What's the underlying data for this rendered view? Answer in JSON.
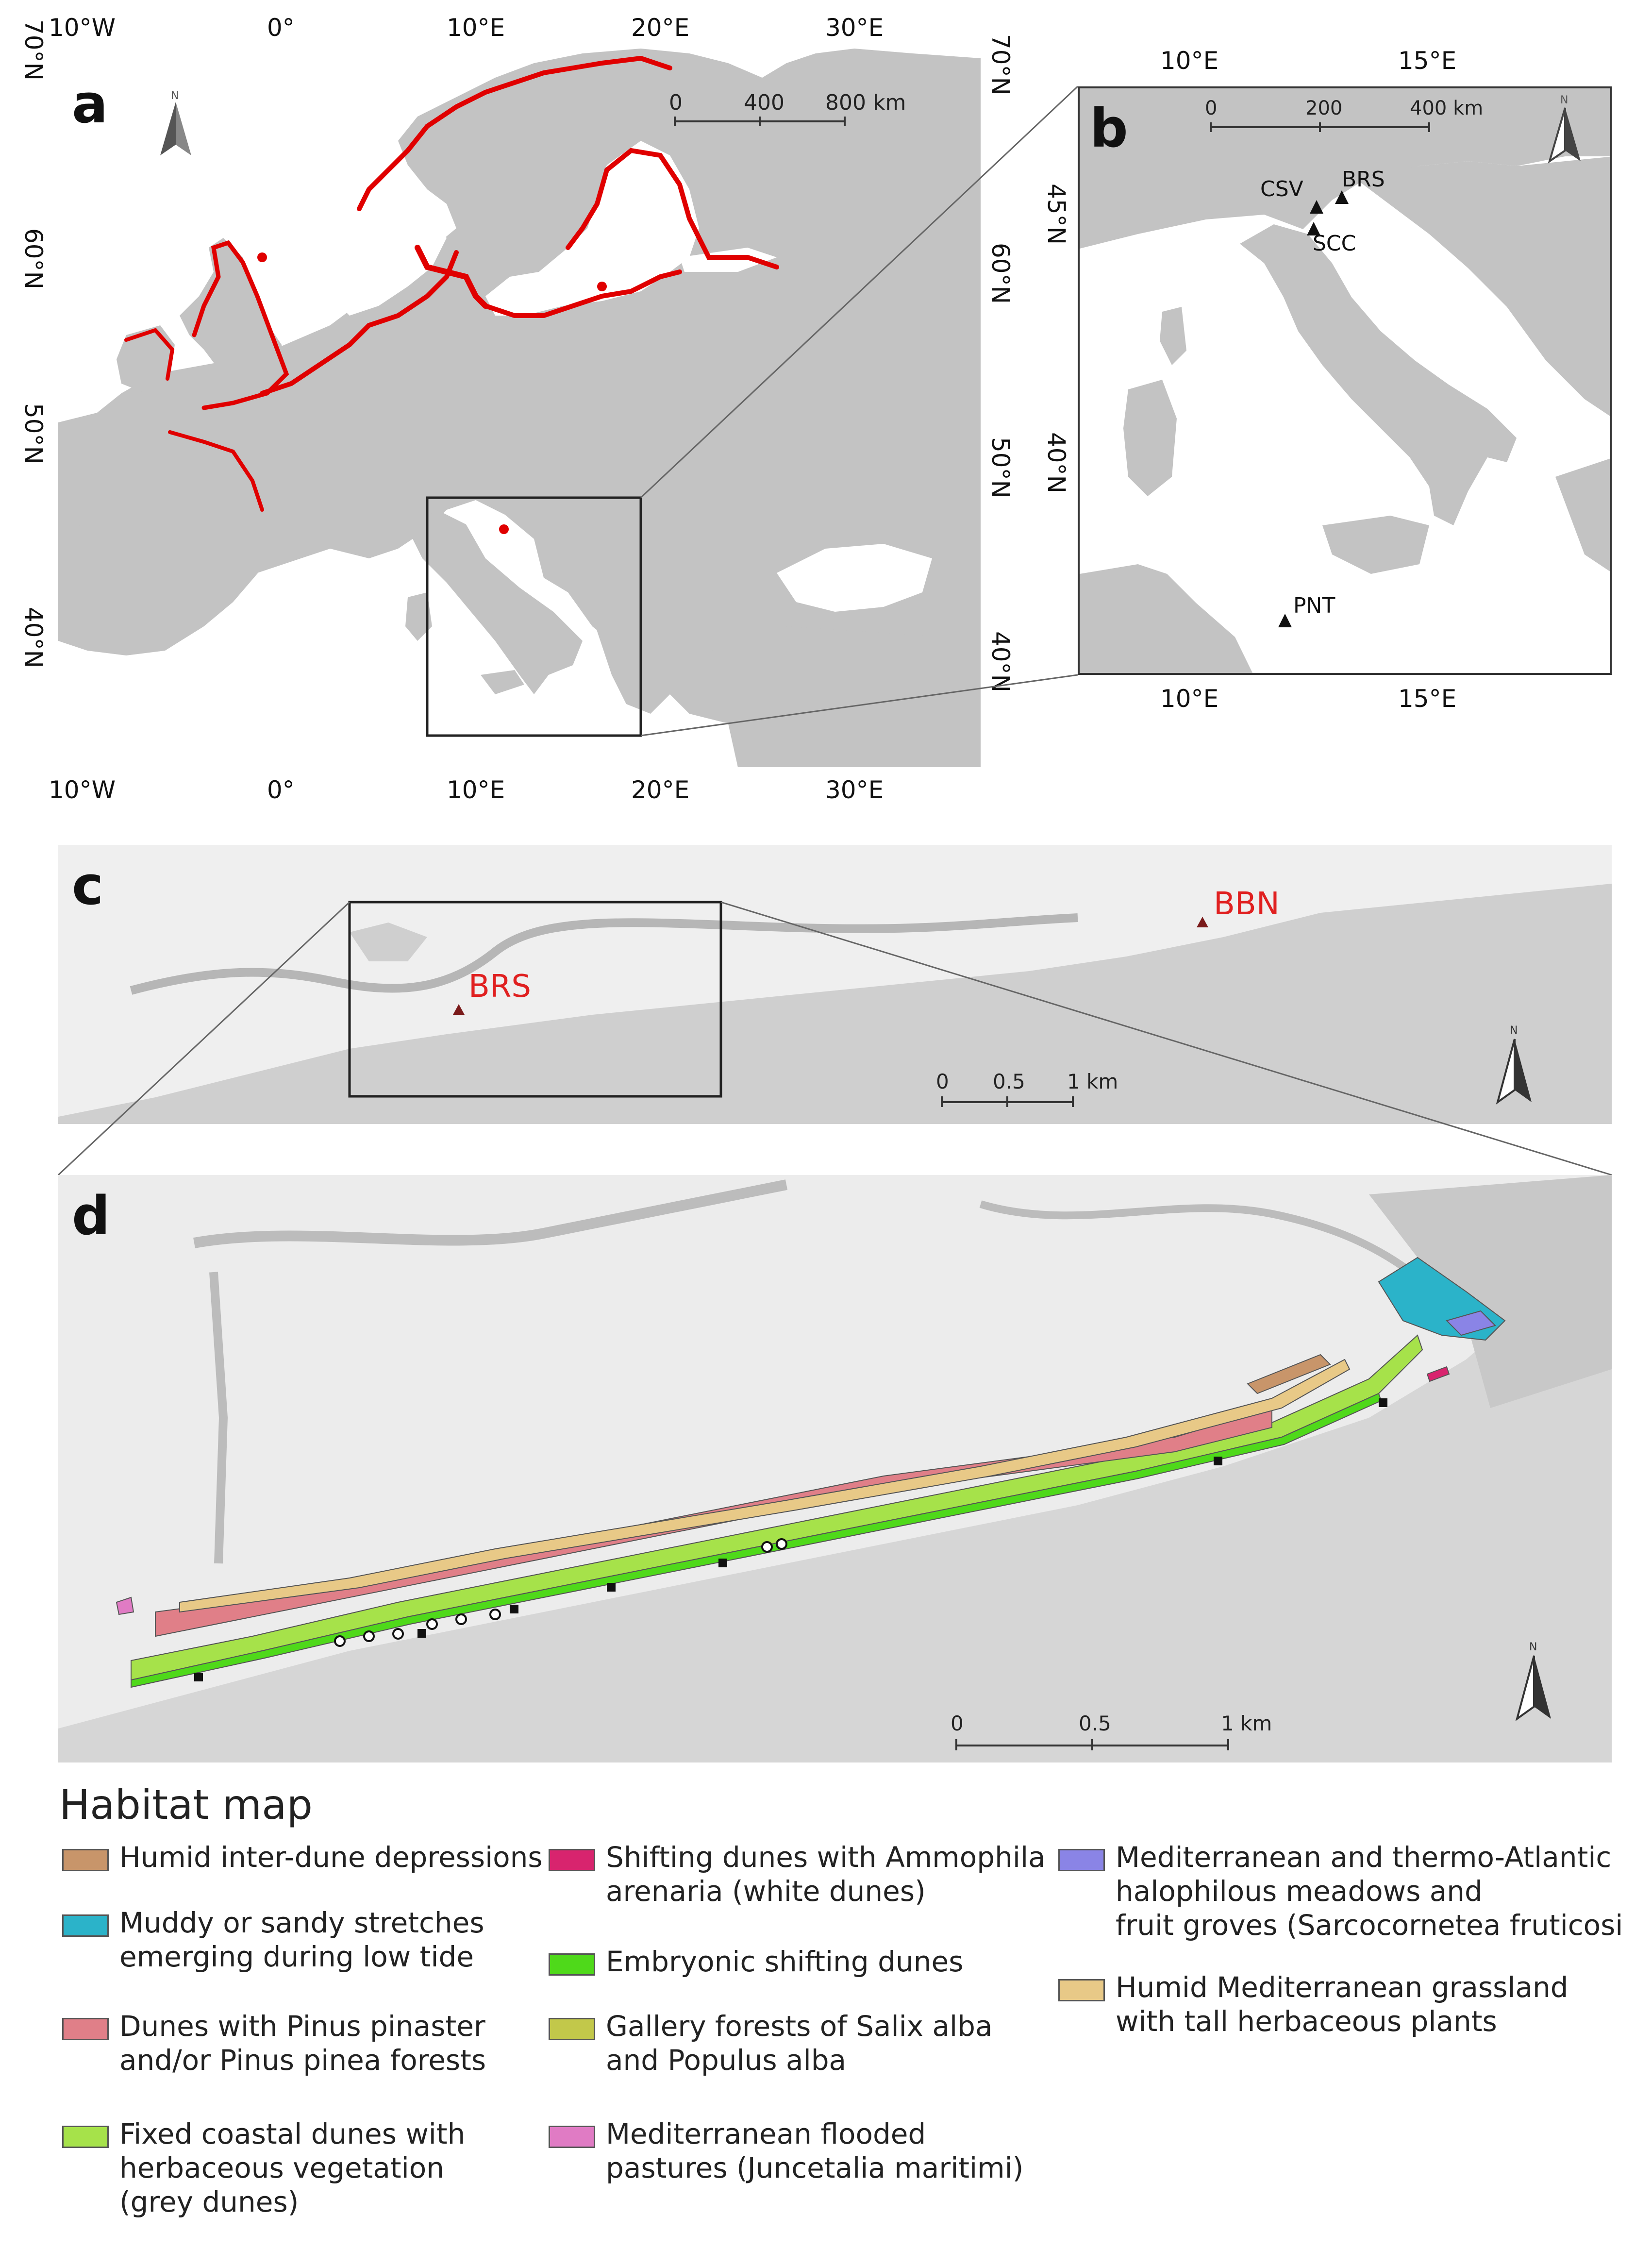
{
  "panels": {
    "a": {
      "letter": "a",
      "top_ticks": [
        "10°W",
        "0°",
        "10°E",
        "20°E",
        "30°E"
      ],
      "bottom_ticks": [
        "10°W",
        "0°",
        "10°E",
        "20°E",
        "30°E"
      ],
      "left_ticks": [
        "70°N",
        "60°N",
        "50°N",
        "40°N"
      ],
      "right_ticks": [
        "70°N",
        "60°N",
        "50°N",
        "40°N"
      ],
      "scale_labels": [
        "0",
        "400",
        "800 km"
      ],
      "north_label": "N"
    },
    "b": {
      "letter": "b",
      "top_ticks": [
        "10°E",
        "15°E"
      ],
      "bottom_ticks": [
        "10°E",
        "15°E"
      ],
      "right_ticks": [
        "45°N",
        "40°N"
      ],
      "scale_labels": [
        "0",
        "200",
        "400 km"
      ],
      "north_label": "N",
      "sites": [
        "CSV",
        "BRS",
        "SCC",
        "PNT"
      ]
    },
    "c": {
      "letter": "c",
      "sites": [
        "BRS",
        "BBN"
      ],
      "scale_labels": [
        "0",
        "0.5",
        "1 km"
      ],
      "north_label": "N"
    },
    "d": {
      "letter": "d",
      "scale_labels": [
        "0",
        "0.5",
        "1 km"
      ],
      "north_label": "N"
    }
  },
  "legend": {
    "title": "Habitat map",
    "items": [
      {
        "label": "Humid inter-dune depressions",
        "color": "#c8956a"
      },
      {
        "label": "Muddy or sandy stretches\n emerging during low tide",
        "color": "#2bb3c9"
      },
      {
        "label": "Dunes with Pinus pinaster\n and/or Pinus pinea forests",
        "color": "#e07f88"
      },
      {
        "label": "Fixed coastal dunes with\n herbaceous vegetation\n (grey dunes)",
        "color": "#a6e24a"
      },
      {
        "label": "Shifting dunes with Ammophila\n arenaria (white dunes)",
        "color": "#d8246e"
      },
      {
        "label": "Embryonic shifting dunes",
        "color": "#4fd91a"
      },
      {
        "label": "Gallery forests of Salix alba\n and Populus alba",
        "color": "#c2c84a"
      },
      {
        "label": "Mediterranean flooded\n pastures (Juncetalia maritimi)",
        "color": "#e07bc4"
      },
      {
        "label": "Mediterranean and thermo-Atlantic\n halophilous meadows and\n fruit groves (Sarcocornetea fruticosi",
        "color": "#8a84e6"
      },
      {
        "label": "Humid Mediterranean grassland\n with tall herbaceous plants",
        "color": "#e8c987"
      }
    ]
  },
  "colors": {
    "land": "#c3c3c3",
    "sea": "#ffffff",
    "occurrence": "#e00000",
    "site_label_red": "#e02020"
  }
}
